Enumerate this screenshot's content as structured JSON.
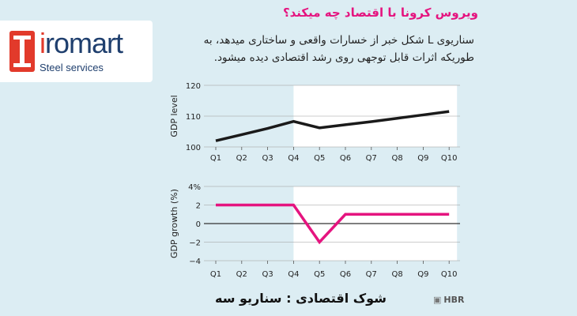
{
  "brand": {
    "name_prefix": "i",
    "name_rest": "romart",
    "tagline": "Steel services"
  },
  "header": {
    "title": "ویروس کرونا با اقتصاد چه میکند؟",
    "description": "سناریوی L شکل خبر از خسارات واقعی و ساختاری میدهد، به طوریکه اثرات قابل توجهی روی رشد اقتصادی دیده میشود."
  },
  "footer": {
    "title": "شوک اقتصادی : سناریو سه",
    "source": "HBR"
  },
  "colors": {
    "background": "#dcedf3",
    "level_line": "#1a1a1a",
    "growth_line": "#e5147f",
    "highlight": "#ffffff",
    "title": "#e5147f",
    "brand_red": "#e23a2b",
    "brand_blue": "#1f3f6e"
  },
  "chart_data": [
    {
      "type": "line",
      "categories": [
        "Q1",
        "Q2",
        "Q3",
        "Q4",
        "Q5",
        "Q6",
        "Q7",
        "Q8",
        "Q9",
        "Q10"
      ],
      "series": [
        {
          "values": [
            102,
            104,
            106,
            108.3,
            106.2,
            107.2,
            108.2,
            109.3,
            110.4,
            111.5
          ]
        }
      ],
      "ylabel": "GDP level",
      "ylim": [
        100,
        120
      ],
      "yticks": [
        "100",
        "110",
        "120"
      ],
      "highlight_range": [
        "Q4",
        "Q10"
      ],
      "grid": true
    },
    {
      "type": "line",
      "categories": [
        "Q1",
        "Q2",
        "Q3",
        "Q4",
        "Q5",
        "Q6",
        "Q7",
        "Q8",
        "Q9",
        "Q10"
      ],
      "series": [
        {
          "values": [
            2,
            2,
            2,
            2,
            -2,
            1,
            1,
            1,
            1,
            1
          ]
        }
      ],
      "ylabel": "GDP growth (%)",
      "ylim": [
        -4,
        4
      ],
      "yticks": [
        "−4",
        "−2",
        "0",
        "2",
        "4%"
      ],
      "highlight_range": [
        "Q4",
        "Q10"
      ],
      "grid": true
    }
  ]
}
